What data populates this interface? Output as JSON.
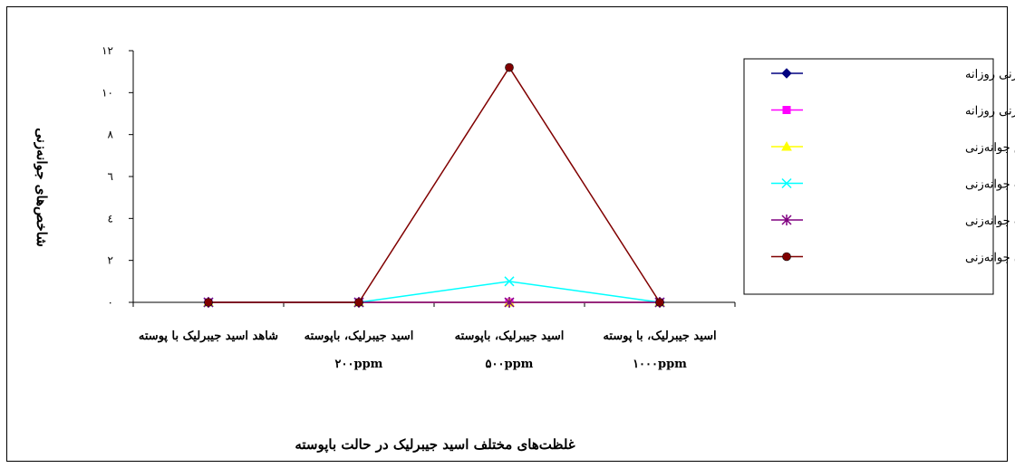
{
  "chart_data": {
    "type": "line",
    "title": "غلظت‌های مختلف اسید جیبرلیک در حالت باپوسته",
    "xlabel": "",
    "ylabel": "شاخص‌های جوانه‌زنی",
    "ylim": [
      0,
      12
    ],
    "yticks": [
      0,
      2,
      4,
      6,
      8,
      10,
      12
    ],
    "ytick_labels": [
      "۰",
      "۲",
      "٤",
      "٦",
      "۸",
      "۱۰",
      "۱۲"
    ],
    "grid": false,
    "legend_position": "right",
    "categories": [
      [
        "شاهد اسید جیبرلیک با پوسته"
      ],
      [
        "اسید جیبرلیک، باپوسته",
        "۲۰۰ppm"
      ],
      [
        "اسید جیبرلیک، باپوسته",
        "۵۰۰ppm"
      ],
      [
        "اسید جیبرلیک، با پوسته",
        "۱۰۰۰ppm"
      ]
    ],
    "series": [
      {
        "name": "میانگین جوانه‌زنی روزانه",
        "color": "#000080",
        "marker": "diamond",
        "values": [
          0,
          0,
          0,
          0
        ]
      },
      {
        "name": "ماکزیمم میانگین جوانه‌زنی روزانه",
        "color": "#ff00ff",
        "marker": "square",
        "values": [
          0,
          0,
          0,
          0
        ]
      },
      {
        "name": "ارزش جوانه‌زنی",
        "color": "#ffff00",
        "marker": "triangle",
        "values": [
          0,
          0,
          0,
          0
        ]
      },
      {
        "name": "سرعت جوانه‌زنی",
        "color": "#00ffff",
        "marker": "x",
        "values": [
          0,
          0,
          1,
          0
        ]
      },
      {
        "name": "قدرت جوانه‌زنی",
        "color": "#800080",
        "marker": "star",
        "values": [
          0,
          0,
          0,
          0
        ]
      },
      {
        "name": "میانگین زمان جوانه‌زنی",
        "color": "#800000",
        "marker": "circle",
        "values": [
          0,
          0,
          11.2,
          0
        ]
      }
    ]
  }
}
